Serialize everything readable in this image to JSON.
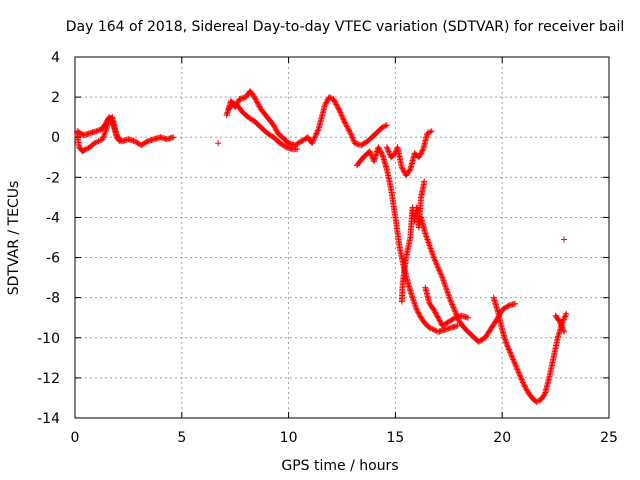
{
  "chart_data": {
    "type": "scatter",
    "title": "Day 164 of 2018, Sidereal Day-to-day VTEC variation (SDTVAR) for receiver bail",
    "xlabel": "GPS time / hours",
    "ylabel": "SDTVAR / TECUs",
    "xlim": [
      0,
      25
    ],
    "ylim": [
      -14,
      4
    ],
    "xticks": [
      0,
      5,
      10,
      15,
      20,
      25
    ],
    "yticks": [
      -14,
      -12,
      -10,
      -8,
      -6,
      -4,
      -2,
      0,
      2,
      4
    ],
    "grid": true,
    "marker": "+",
    "series": [
      {
        "name": "SDTVAR",
        "color": "#ff0000",
        "segments": [
          [
            [
              0.1,
              0.2
            ],
            [
              0.2,
              -0.5
            ],
            [
              0.35,
              -0.7
            ],
            [
              0.5,
              -0.6
            ],
            [
              0.7,
              -0.5
            ],
            [
              0.9,
              -0.3
            ],
            [
              1.1,
              -0.2
            ],
            [
              1.3,
              -0.1
            ],
            [
              1.5,
              0.5
            ],
            [
              1.6,
              0.9
            ],
            [
              1.75,
              1.0
            ],
            [
              1.85,
              0.5
            ],
            [
              2.0,
              0.0
            ],
            [
              2.2,
              -0.2
            ],
            [
              2.5,
              -0.1
            ],
            [
              2.8,
              -0.2
            ],
            [
              3.1,
              -0.4
            ],
            [
              3.4,
              -0.2
            ],
            [
              3.7,
              -0.1
            ],
            [
              4.0,
              0.0
            ],
            [
              4.3,
              -0.1
            ],
            [
              4.6,
              0.0
            ]
          ],
          [
            [
              0.1,
              0.3
            ],
            [
              0.4,
              0.1
            ],
            [
              0.7,
              0.2
            ],
            [
              1.0,
              0.3
            ],
            [
              1.25,
              0.4
            ],
            [
              1.45,
              0.7
            ],
            [
              1.6,
              1.0
            ],
            [
              1.7,
              0.9
            ],
            [
              1.8,
              0.6
            ],
            [
              1.95,
              0.0
            ],
            [
              2.1,
              -0.2
            ]
          ],
          [
            [
              6.7,
              -0.3
            ]
          ],
          [
            [
              7.1,
              1.1
            ],
            [
              7.3,
              1.8
            ],
            [
              7.5,
              1.5
            ],
            [
              7.7,
              1.9
            ],
            [
              8.0,
              2.0
            ],
            [
              8.2,
              2.3
            ],
            [
              8.4,
              2.0
            ],
            [
              8.7,
              1.4
            ],
            [
              9.0,
              1.0
            ],
            [
              9.3,
              0.6
            ],
            [
              9.5,
              0.2
            ],
            [
              9.8,
              -0.1
            ],
            [
              10.0,
              -0.3
            ],
            [
              10.3,
              -0.4
            ],
            [
              10.6,
              -0.2
            ],
            [
              10.9,
              0.0
            ],
            [
              11.1,
              -0.3
            ],
            [
              11.4,
              0.4
            ],
            [
              11.7,
              1.6
            ],
            [
              11.9,
              2.0
            ],
            [
              12.1,
              1.9
            ],
            [
              12.4,
              1.3
            ],
            [
              12.6,
              0.8
            ],
            [
              12.9,
              0.2
            ],
            [
              13.1,
              -0.3
            ],
            [
              13.4,
              -0.4
            ],
            [
              13.7,
              -0.2
            ],
            [
              14.0,
              0.1
            ],
            [
              14.2,
              0.3
            ],
            [
              14.4,
              0.5
            ],
            [
              14.6,
              0.6
            ]
          ],
          [
            [
              7.2,
              1.4
            ],
            [
              7.4,
              1.7
            ],
            [
              7.6,
              1.6
            ],
            [
              7.8,
              1.3
            ],
            [
              8.1,
              1.0
            ],
            [
              8.4,
              0.8
            ],
            [
              8.7,
              0.5
            ],
            [
              9.0,
              0.2
            ],
            [
              9.3,
              0.0
            ],
            [
              9.6,
              -0.3
            ],
            [
              9.9,
              -0.5
            ],
            [
              10.2,
              -0.6
            ],
            [
              10.4,
              -0.6
            ]
          ],
          [
            [
              13.2,
              -1.4
            ],
            [
              13.5,
              -1.0
            ],
            [
              13.8,
              -0.7
            ],
            [
              14.0,
              -1.2
            ],
            [
              14.2,
              -0.5
            ],
            [
              14.4,
              -0.9
            ],
            [
              14.6,
              -1.6
            ],
            [
              14.8,
              -2.6
            ],
            [
              15.0,
              -4.0
            ],
            [
              15.2,
              -5.5
            ],
            [
              15.4,
              -6.5
            ],
            [
              15.6,
              -7.3
            ],
            [
              15.8,
              -8.0
            ],
            [
              16.0,
              -8.6
            ],
            [
              16.2,
              -9.0
            ],
            [
              16.4,
              -9.3
            ],
            [
              16.6,
              -9.5
            ],
            [
              16.8,
              -9.6
            ],
            [
              17.0,
              -9.7
            ],
            [
              17.3,
              -9.6
            ],
            [
              17.6,
              -9.5
            ],
            [
              17.9,
              -9.4
            ]
          ],
          [
            [
              14.6,
              -0.5
            ],
            [
              14.8,
              -1.0
            ],
            [
              15.0,
              -0.8
            ],
            [
              15.1,
              -0.5
            ],
            [
              15.3,
              -1.5
            ],
            [
              15.5,
              -1.9
            ],
            [
              15.7,
              -1.6
            ],
            [
              15.9,
              -0.8
            ],
            [
              16.1,
              -1.0
            ],
            [
              16.3,
              -0.6
            ],
            [
              16.5,
              0.2
            ],
            [
              16.7,
              0.3
            ]
          ],
          [
            [
              15.3,
              -8.2
            ],
            [
              15.35,
              -7.2
            ],
            [
              15.5,
              -6.0
            ],
            [
              15.7,
              -5.0
            ],
            [
              15.8,
              -3.5
            ],
            [
              15.9,
              -4.2
            ],
            [
              16.0,
              -3.5
            ],
            [
              16.1,
              -4.5
            ],
            [
              16.2,
              -3.0
            ],
            [
              16.3,
              -2.5
            ],
            [
              16.35,
              -2.2
            ]
          ],
          [
            [
              16.2,
              -4.0
            ],
            [
              16.4,
              -4.8
            ],
            [
              16.6,
              -5.4
            ],
            [
              16.8,
              -6.0
            ],
            [
              17.0,
              -6.5
            ],
            [
              17.2,
              -7.0
            ],
            [
              17.4,
              -7.6
            ],
            [
              17.6,
              -8.2
            ],
            [
              17.8,
              -8.7
            ],
            [
              18.0,
              -9.2
            ],
            [
              18.3,
              -9.6
            ],
            [
              18.6,
              -9.9
            ],
            [
              18.9,
              -10.2
            ],
            [
              19.2,
              -10.0
            ],
            [
              19.5,
              -9.5
            ],
            [
              19.8,
              -9.0
            ],
            [
              20.0,
              -8.6
            ],
            [
              20.3,
              -8.4
            ],
            [
              20.6,
              -8.3
            ]
          ],
          [
            [
              16.4,
              -7.5
            ],
            [
              16.6,
              -8.3
            ],
            [
              16.8,
              -8.6
            ],
            [
              17.0,
              -9.0
            ],
            [
              17.2,
              -9.4
            ],
            [
              17.5,
              -9.2
            ],
            [
              17.8,
              -9.0
            ],
            [
              18.1,
              -8.9
            ],
            [
              18.4,
              -9.0
            ]
          ],
          [
            [
              19.6,
              -8.0
            ],
            [
              19.8,
              -8.7
            ],
            [
              20.0,
              -9.6
            ],
            [
              20.2,
              -10.3
            ],
            [
              20.4,
              -10.8
            ],
            [
              20.6,
              -11.3
            ],
            [
              20.8,
              -11.8
            ],
            [
              21.0,
              -12.3
            ],
            [
              21.2,
              -12.7
            ],
            [
              21.4,
              -13.0
            ],
            [
              21.6,
              -13.2
            ],
            [
              21.8,
              -13.1
            ],
            [
              22.0,
              -12.8
            ],
            [
              22.2,
              -12.0
            ],
            [
              22.4,
              -11.0
            ],
            [
              22.6,
              -10.0
            ],
            [
              22.8,
              -9.3
            ],
            [
              23.0,
              -8.8
            ]
          ],
          [
            [
              22.5,
              -8.9
            ],
            [
              22.7,
              -9.2
            ],
            [
              22.9,
              -9.7
            ]
          ],
          [
            [
              22.9,
              -5.1
            ]
          ]
        ]
      }
    ]
  }
}
